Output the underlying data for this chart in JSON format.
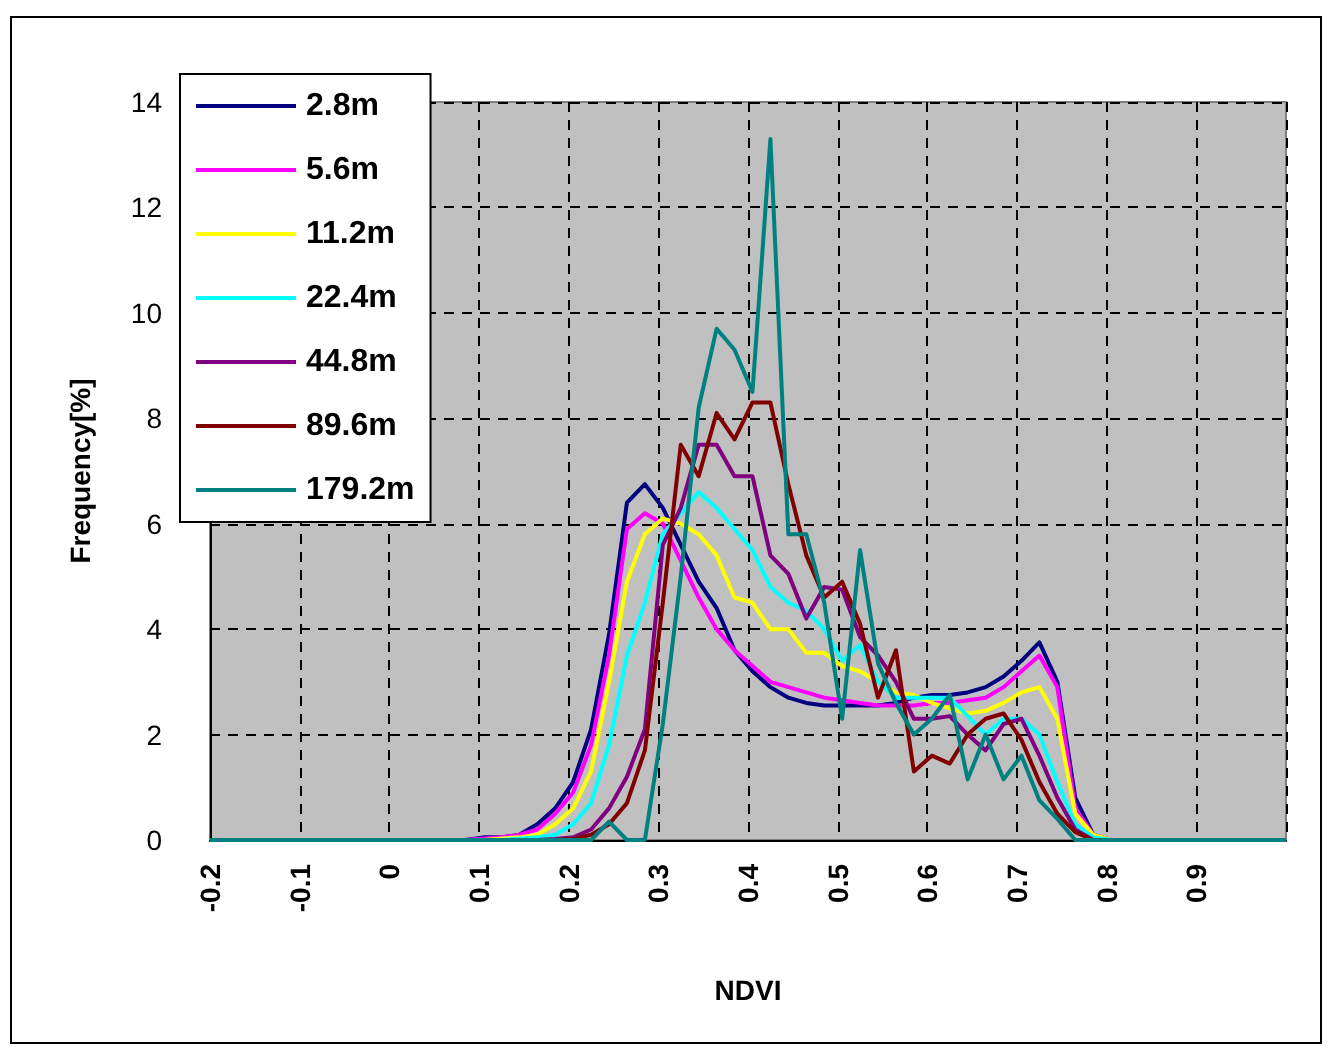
{
  "chart_data": {
    "type": "line",
    "xlabel": "NDVI",
    "ylabel": "Frequency[%]",
    "x": [
      -0.2,
      0.085,
      0.105,
      0.125,
      0.145,
      0.165,
      0.185,
      0.205,
      0.225,
      0.245,
      0.265,
      0.285,
      0.305,
      0.325,
      0.345,
      0.365,
      0.385,
      0.405,
      0.425,
      0.445,
      0.465,
      0.485,
      0.505,
      0.525,
      0.545,
      0.565,
      0.585,
      0.605,
      0.625,
      0.645,
      0.665,
      0.685,
      0.705,
      0.725,
      0.745,
      0.765,
      0.785,
      0.805,
      1.0
    ],
    "series": [
      {
        "name": "2.8m",
        "color": "#000080",
        "values": [
          null,
          0,
          0.05,
          0.05,
          0.1,
          0.3,
          0.6,
          1.1,
          2.1,
          3.9,
          6.4,
          6.75,
          6.3,
          5.6,
          4.9,
          4.4,
          3.6,
          3.2,
          2.9,
          2.7,
          2.6,
          2.55,
          2.55,
          2.55,
          2.55,
          2.6,
          2.7,
          2.75,
          2.75,
          2.8,
          2.9,
          3.1,
          3.4,
          3.75,
          3.0,
          0.8,
          0.1,
          0,
          null
        ]
      },
      {
        "name": "5.6m",
        "color": "#ff00ff",
        "values": [
          null,
          0,
          0.03,
          0.05,
          0.1,
          0.2,
          0.5,
          0.9,
          1.8,
          3.5,
          5.9,
          6.2,
          6.0,
          5.3,
          4.6,
          4.0,
          3.6,
          3.3,
          3.0,
          2.9,
          2.8,
          2.7,
          2.65,
          2.6,
          2.55,
          2.55,
          2.55,
          2.6,
          2.6,
          2.65,
          2.7,
          2.9,
          3.2,
          3.5,
          2.9,
          0.6,
          0.1,
          0,
          null
        ]
      },
      {
        "name": "11.2m",
        "color": "#ffff00",
        "values": [
          null,
          null,
          0,
          0.03,
          0.05,
          0.1,
          0.3,
          0.6,
          1.3,
          3.0,
          4.9,
          5.8,
          6.1,
          6.0,
          5.8,
          5.4,
          4.6,
          4.5,
          4.0,
          4.0,
          3.55,
          3.55,
          3.3,
          3.2,
          3.0,
          2.8,
          2.75,
          2.6,
          2.5,
          2.4,
          2.45,
          2.6,
          2.8,
          2.9,
          2.3,
          0.5,
          0.1,
          0,
          null
        ]
      },
      {
        "name": "22.4m",
        "color": "#00ffff",
        "values": [
          null,
          null,
          null,
          0,
          0.03,
          0.05,
          0.1,
          0.3,
          0.7,
          1.8,
          3.5,
          4.5,
          5.8,
          6.2,
          6.6,
          6.3,
          5.9,
          5.5,
          4.8,
          4.5,
          4.35,
          4.0,
          3.4,
          3.7,
          3.0,
          2.7,
          2.7,
          2.7,
          2.7,
          2.35,
          2.0,
          2.3,
          2.3,
          2.0,
          1.1,
          0.3,
          0.05,
          0,
          null
        ]
      },
      {
        "name": "44.8m",
        "color": "#800080",
        "values": [
          null,
          null,
          null,
          null,
          null,
          0,
          0.02,
          0.05,
          0.2,
          0.6,
          1.2,
          2.1,
          5.6,
          6.3,
          7.5,
          7.5,
          6.9,
          6.9,
          5.4,
          5.05,
          4.2,
          4.8,
          4.75,
          3.85,
          3.5,
          3.0,
          2.3,
          2.3,
          2.35,
          2.0,
          1.7,
          2.2,
          2.3,
          1.6,
          0.8,
          0.2,
          0,
          null,
          null
        ]
      },
      {
        "name": "89.6m",
        "color": "#800000",
        "values": [
          null,
          null,
          null,
          null,
          null,
          null,
          0,
          0.02,
          0.1,
          0.3,
          0.7,
          1.7,
          4.5,
          7.5,
          6.9,
          8.1,
          7.6,
          8.3,
          8.3,
          6.75,
          5.4,
          4.6,
          4.9,
          4.1,
          2.7,
          3.6,
          1.3,
          1.6,
          1.45,
          2.0,
          2.3,
          2.4,
          1.9,
          1.1,
          0.5,
          0.15,
          0,
          null,
          null
        ]
      },
      {
        "name": "179.2m",
        "color": "#008080",
        "values": [
          0,
          0,
          0,
          0,
          0,
          0,
          0,
          0,
          0,
          0.35,
          0,
          0,
          2.2,
          5.0,
          8.2,
          9.7,
          9.3,
          8.5,
          13.3,
          5.8,
          5.8,
          4.5,
          2.3,
          5.5,
          3.35,
          2.6,
          2.0,
          2.3,
          2.75,
          1.15,
          2.0,
          1.15,
          1.6,
          0.75,
          0.4,
          0,
          0,
          0,
          0
        ]
      }
    ],
    "xlim": [
      -0.2,
      1.0
    ],
    "xticks": [
      -0.2,
      -0.1,
      0,
      0.1,
      0.2,
      0.3,
      0.4,
      0.5,
      0.6,
      0.7,
      0.8,
      0.9
    ],
    "ylim": [
      0,
      14
    ],
    "yticks": [
      0,
      2,
      4,
      6,
      8,
      10,
      12,
      14
    ],
    "grid": true,
    "legend": "top left",
    "marker": "none",
    "line_style": "solid"
  }
}
